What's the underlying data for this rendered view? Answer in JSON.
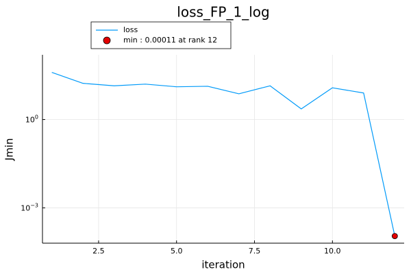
{
  "chart_data": {
    "type": "line",
    "title": "loss_FP_1_log",
    "xlabel": "iteration",
    "ylabel": "Jmin",
    "xlim": [
      0.7,
      12.3
    ],
    "ylim_log10": [
      -4.2,
      2.2
    ],
    "y_scale": "log",
    "grid": true,
    "legend_position": "top-left",
    "x_ticks": [
      {
        "value": 2.5,
        "label": "2.5"
      },
      {
        "value": 5.0,
        "label": "5.0"
      },
      {
        "value": 7.5,
        "label": "7.5"
      },
      {
        "value": 10.0,
        "label": "10.0"
      }
    ],
    "y_ticks": [
      {
        "value": 1,
        "label_base": "10",
        "label_exp": "0"
      },
      {
        "value": 0.001,
        "label_base": "10",
        "label_exp": "−3"
      }
    ],
    "series": [
      {
        "name": "loss",
        "color": "#009af9",
        "x": [
          1,
          2,
          3,
          4,
          5,
          6,
          7,
          8,
          9,
          10,
          11,
          12
        ],
        "y": [
          40,
          17,
          14,
          16,
          13,
          13.5,
          7.5,
          14,
          2.3,
          12,
          8,
          0.00011
        ]
      }
    ],
    "min_marker": {
      "label": "min : 0.00011 at rank 12",
      "x": 12,
      "y": 0.00011,
      "color": "#e30000"
    }
  }
}
